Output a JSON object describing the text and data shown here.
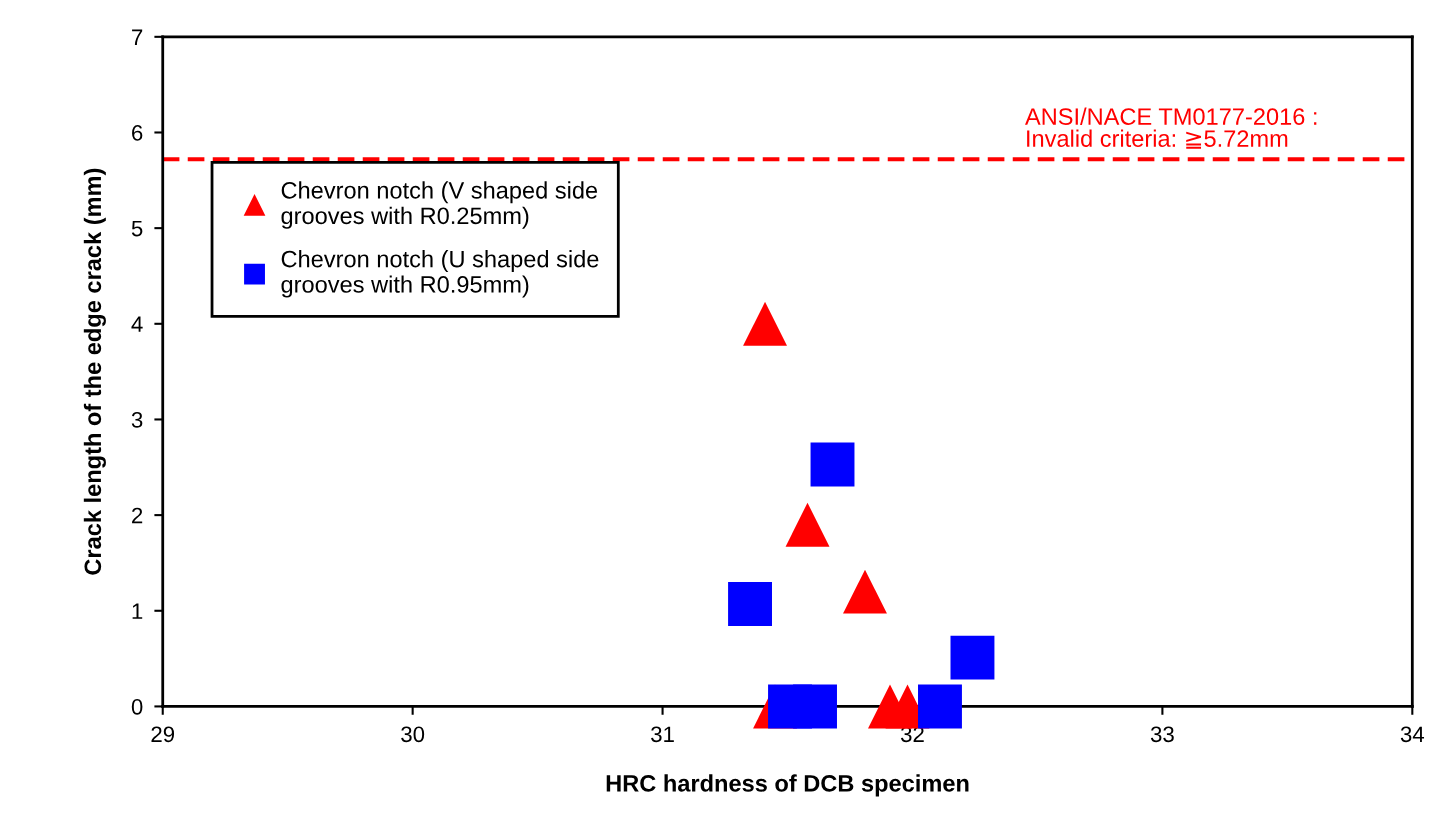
{
  "chart_data": {
    "type": "scatter",
    "xlabel": "HRC hardness of DCB specimen",
    "ylabel": "Crack length of the edge crack (mm)",
    "xlim": [
      29,
      34
    ],
    "xticks": [
      29,
      30,
      31,
      32,
      33,
      34
    ],
    "ylim": [
      0,
      7
    ],
    "yticks": [
      0,
      1,
      2,
      3,
      4,
      5,
      6,
      7
    ],
    "grid": false,
    "legend": "top left",
    "series": [
      {
        "name": "Chevron notch (V shaped side\ngrooves with R0.25mm)",
        "color": "#ff0000",
        "marker": "triangle",
        "x": [
          31.41,
          31.58,
          31.81,
          31.45,
          31.91,
          31.98
        ],
        "values": [
          4.0,
          1.9,
          1.2,
          0,
          0,
          0
        ]
      },
      {
        "name": "Chevron notch (U shaped side\ngrooves with R0.95mm)",
        "color": "#0000ff",
        "marker": "square",
        "x": [
          31.68,
          31.35,
          32.24,
          31.51,
          31.61,
          32.11
        ],
        "values": [
          2.53,
          1.07,
          0.51,
          0,
          0,
          0
        ]
      }
    ],
    "ref_lines": [
      {
        "axis": "y",
        "value": 5.72,
        "label": "ANSI/NACE TM0177-2016 :\nInvalid criteria: ≧5.72mm",
        "color": "#ff0000",
        "line_style": "dashed"
      }
    ]
  }
}
